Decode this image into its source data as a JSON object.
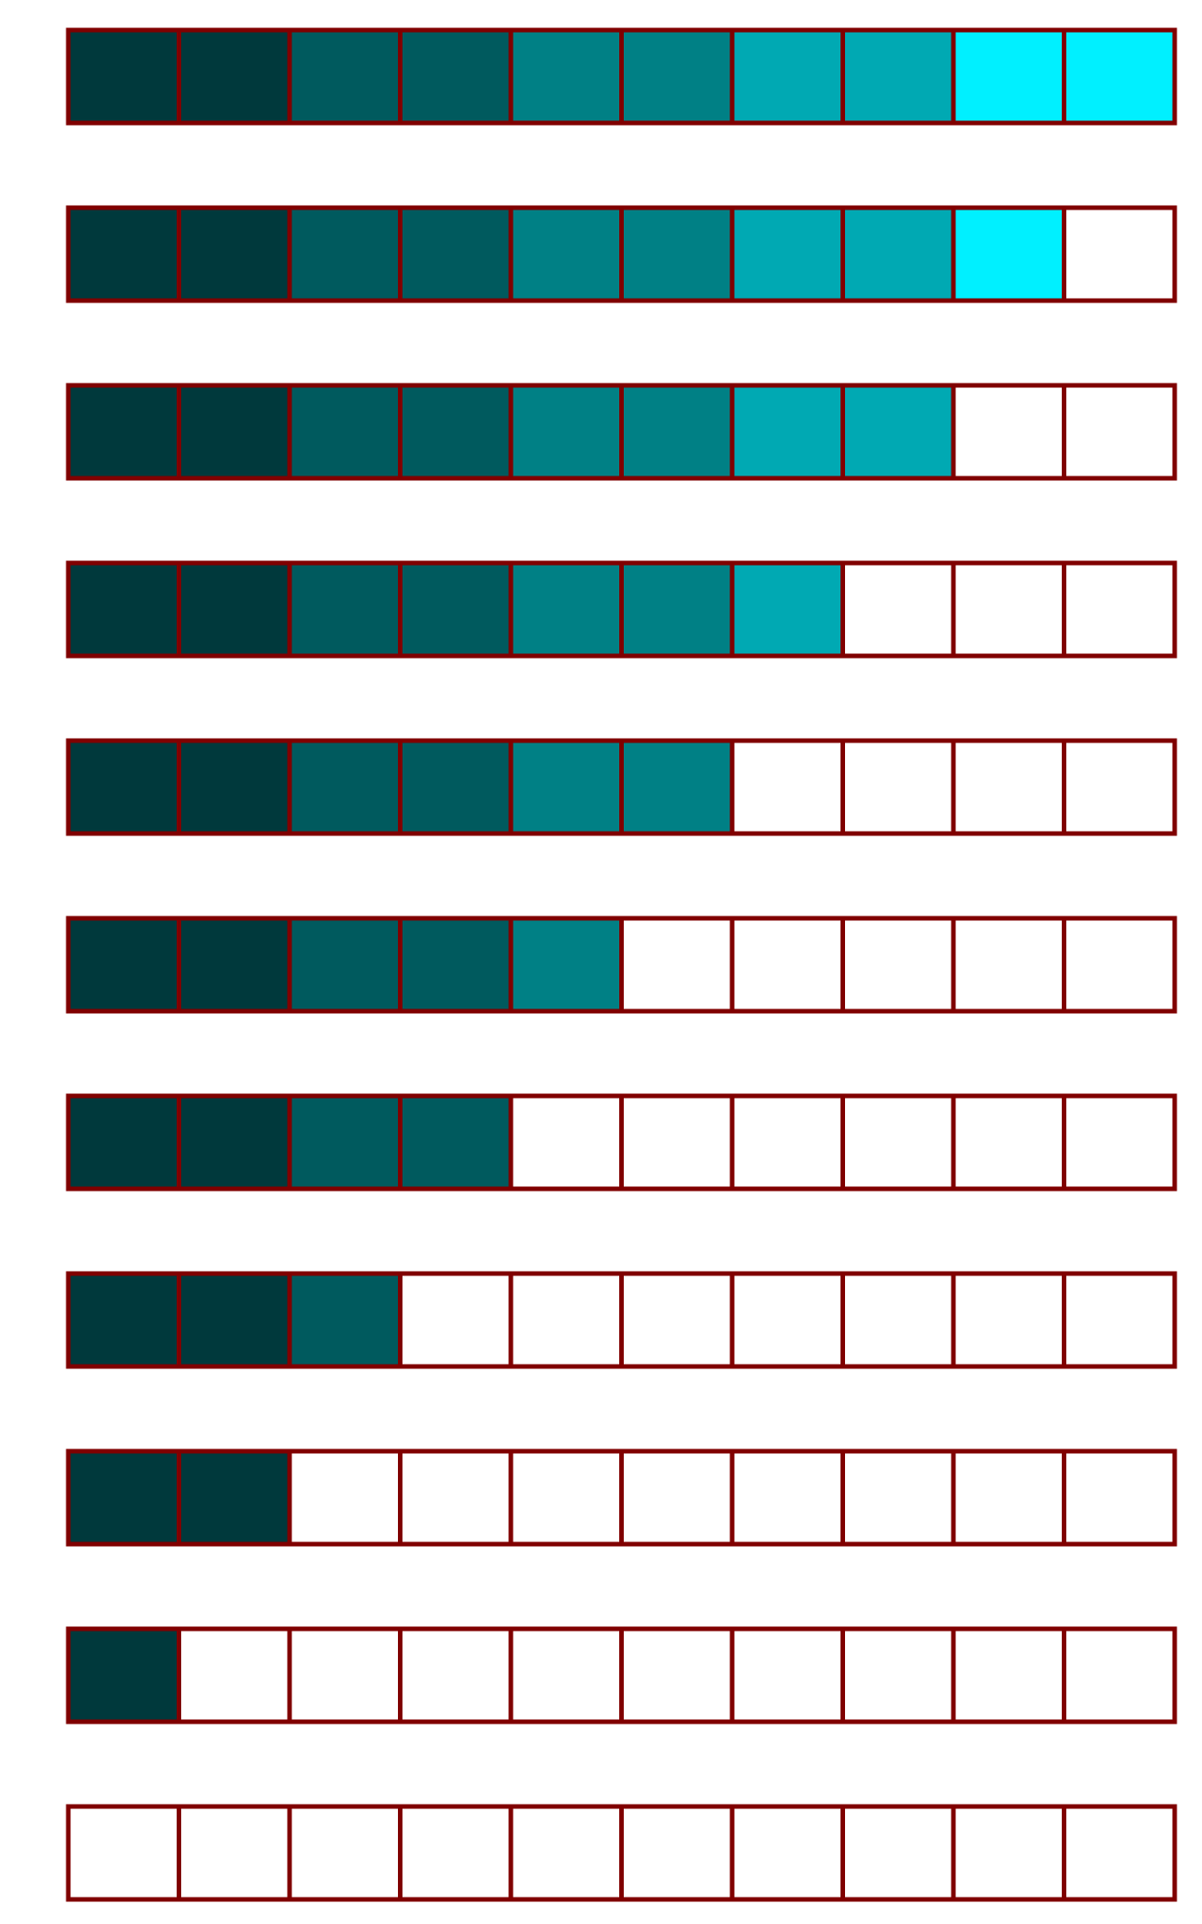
{
  "diagram": {
    "border_color": "#800000",
    "empty_color": "#ffffff",
    "cells_per_row": 10,
    "palette": [
      "#00393c",
      "#005a5e",
      "#008085",
      "#00a9b3",
      "#00f0ff"
    ],
    "rows": [
      {
        "filled": 10
      },
      {
        "filled": 9
      },
      {
        "filled": 8
      },
      {
        "filled": 7
      },
      {
        "filled": 6
      },
      {
        "filled": 5
      },
      {
        "filled": 4
      },
      {
        "filled": 3
      },
      {
        "filled": 2
      },
      {
        "filled": 1
      },
      {
        "filled": 0
      }
    ]
  }
}
